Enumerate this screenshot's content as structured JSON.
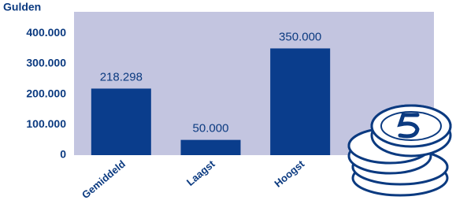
{
  "chart_data": {
    "type": "bar",
    "y_axis_label": "Gulden",
    "categories": [
      "Gemiddeld",
      "Laagst",
      "Hoogst"
    ],
    "values": [
      218298,
      50000,
      350000
    ],
    "value_labels": [
      "218.298",
      "50.000",
      "350.000"
    ],
    "color": "#0a3d8c",
    "ylim": [
      0,
      470000
    ],
    "yticks": [
      0,
      {
        "value": 100000,
        "label": "100.000"
      },
      {
        "value": 200000,
        "label": "200.000"
      },
      {
        "value": 300000,
        "label": "300.000"
      },
      {
        "value": 400000,
        "label": "400.000"
      }
    ]
  }
}
